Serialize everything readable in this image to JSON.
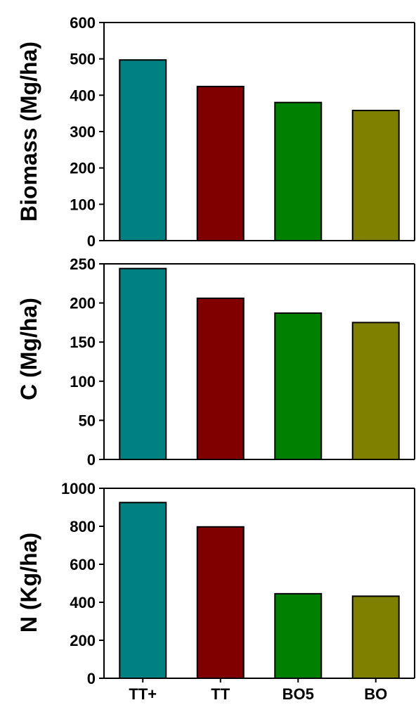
{
  "chart_data": [
    {
      "type": "bar",
      "categories": [
        "TT+",
        "TT",
        "BO5",
        "BO"
      ],
      "values": [
        497,
        424,
        380,
        358
      ],
      "ylabel": "Biomass (Mg/ha)",
      "ylim": [
        0,
        600
      ],
      "yticks": [
        0,
        100,
        200,
        300,
        400,
        500,
        600
      ],
      "colors": [
        "#008080",
        "#800000",
        "#008000",
        "#808000"
      ],
      "grid": false
    },
    {
      "type": "bar",
      "categories": [
        "TT+",
        "TT",
        "BO5",
        "BO"
      ],
      "values": [
        244,
        206,
        187,
        175
      ],
      "ylabel": "C (Mg/ha)",
      "ylim": [
        0,
        250
      ],
      "yticks": [
        0,
        50,
        100,
        150,
        200,
        250
      ],
      "colors": [
        "#008080",
        "#800000",
        "#008000",
        "#808000"
      ],
      "grid": false
    },
    {
      "type": "bar",
      "categories": [
        "TT+",
        "TT",
        "BO5",
        "BO"
      ],
      "values": [
        925,
        797,
        445,
        432
      ],
      "ylabel": "N (Kg/ha)",
      "ylim": [
        0,
        1000
      ],
      "yticks": [
        0,
        200,
        400,
        600,
        800,
        1000
      ],
      "colors": [
        "#008080",
        "#800000",
        "#008000",
        "#808000"
      ],
      "grid": false
    }
  ]
}
